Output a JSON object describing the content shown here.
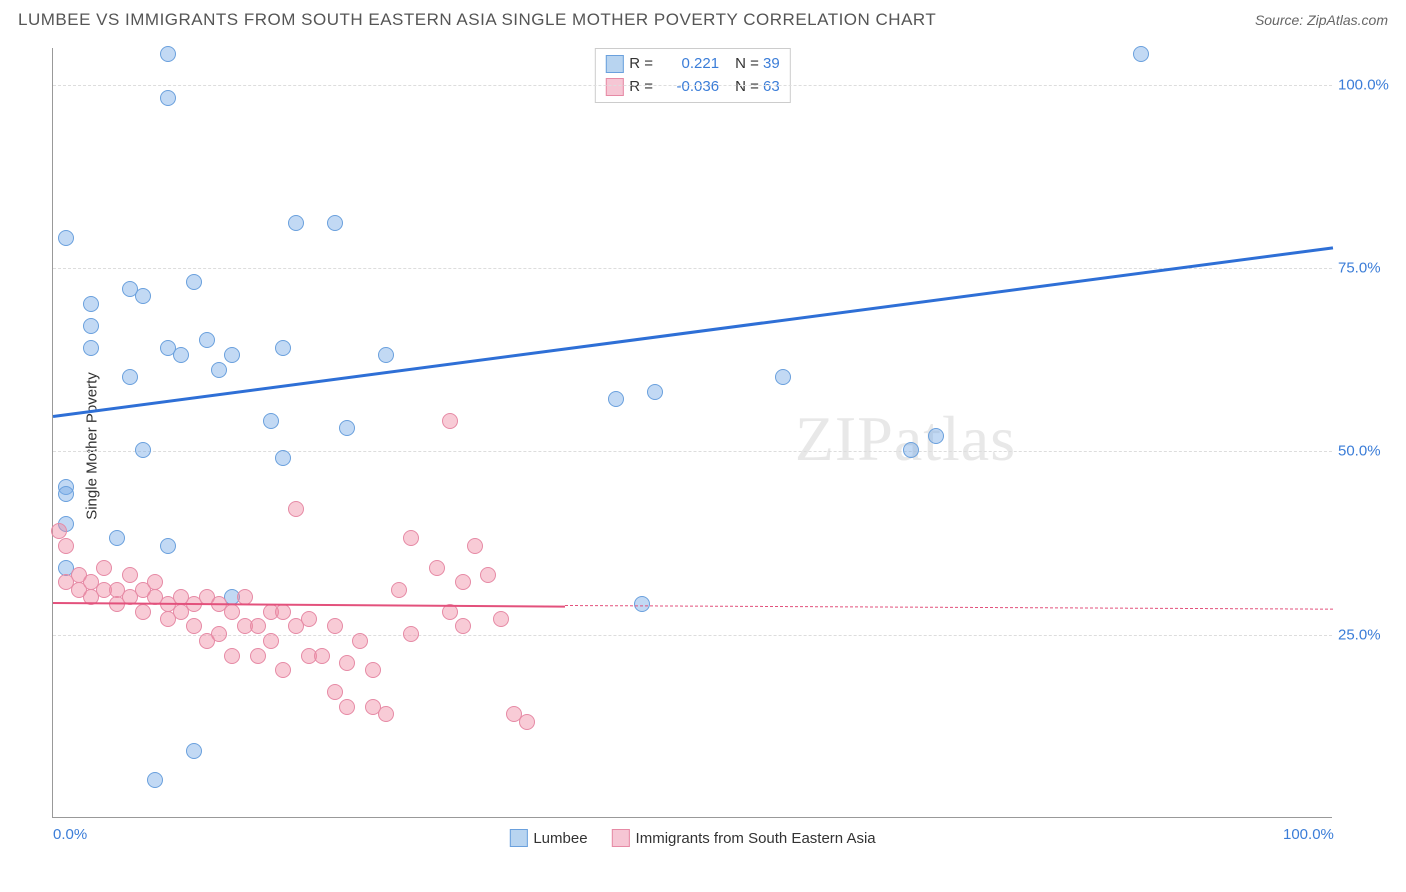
{
  "title": "LUMBEE VS IMMIGRANTS FROM SOUTH EASTERN ASIA SINGLE MOTHER POVERTY CORRELATION CHART",
  "source": "Source: ZipAtlas.com",
  "y_axis_label": "Single Mother Poverty",
  "watermark": "ZIPatlas",
  "chart": {
    "type": "scatter",
    "xlim": [
      0,
      100
    ],
    "ylim": [
      0,
      105
    ],
    "y_ticks": [
      25,
      50,
      75,
      100
    ],
    "y_tick_labels": [
      "25.0%",
      "50.0%",
      "75.0%",
      "100.0%"
    ],
    "x_ticks": [
      0,
      100
    ],
    "x_tick_labels": [
      "0.0%",
      "100.0%"
    ],
    "grid_color": "#dddddd",
    "background_color": "#ffffff"
  },
  "series": [
    {
      "name": "Lumbee",
      "color_fill": "rgba(120,170,230,0.45)",
      "color_stroke": "#6aa0dd",
      "swatch_fill": "#b8d4f0",
      "swatch_stroke": "#6aa0dd",
      "r_value": "0.221",
      "n_value": "39",
      "marker_radius": 8,
      "trend": {
        "x1": 0,
        "y1": 55,
        "x2": 100,
        "y2": 78,
        "color": "#2e6fd6",
        "width": 2.5
      },
      "points": [
        [
          1,
          79
        ],
        [
          1,
          45
        ],
        [
          1,
          44
        ],
        [
          1,
          40
        ],
        [
          9,
          104
        ],
        [
          9,
          98
        ],
        [
          3,
          67
        ],
        [
          3,
          64
        ],
        [
          6,
          72
        ],
        [
          7,
          71
        ],
        [
          9,
          64
        ],
        [
          11,
          73
        ],
        [
          5,
          38
        ],
        [
          7,
          50
        ],
        [
          10,
          63
        ],
        [
          12,
          65
        ],
        [
          13,
          61
        ],
        [
          14,
          63
        ],
        [
          17,
          54
        ],
        [
          18,
          64
        ],
        [
          19,
          81
        ],
        [
          22,
          81
        ],
        [
          18,
          49
        ],
        [
          14,
          30
        ],
        [
          23,
          53
        ],
        [
          26,
          63
        ],
        [
          11,
          9
        ],
        [
          8,
          5
        ],
        [
          44,
          57
        ],
        [
          47,
          58
        ],
        [
          57,
          60
        ],
        [
          67,
          50
        ],
        [
          69,
          52
        ],
        [
          85,
          104
        ],
        [
          46,
          29
        ],
        [
          1,
          34
        ],
        [
          3,
          70
        ],
        [
          6,
          60
        ],
        [
          9,
          37
        ]
      ]
    },
    {
      "name": "Immigrants from South Eastern Asia",
      "color_fill": "rgba(240,140,165,0.45)",
      "color_stroke": "#e68aa5",
      "swatch_fill": "#f6c6d4",
      "swatch_stroke": "#e68aa5",
      "r_value": "-0.036",
      "n_value": "63",
      "marker_radius": 8,
      "trend": {
        "x1": 0,
        "y1": 29.5,
        "x2": 40,
        "y2": 29,
        "dash_to_x": 100,
        "dash_to_y": 28.5,
        "color": "#e3517c",
        "width": 2
      },
      "points": [
        [
          0.5,
          39
        ],
        [
          1,
          37
        ],
        [
          1,
          32
        ],
        [
          2,
          33
        ],
        [
          2,
          31
        ],
        [
          3,
          32
        ],
        [
          3,
          30
        ],
        [
          4,
          34
        ],
        [
          4,
          31
        ],
        [
          5,
          31
        ],
        [
          5,
          29
        ],
        [
          6,
          33
        ],
        [
          6,
          30
        ],
        [
          7,
          31
        ],
        [
          7,
          28
        ],
        [
          8,
          30
        ],
        [
          8,
          32
        ],
        [
          9,
          29
        ],
        [
          9,
          27
        ],
        [
          10,
          30
        ],
        [
          10,
          28
        ],
        [
          11,
          29
        ],
        [
          11,
          26
        ],
        [
          12,
          30
        ],
        [
          12,
          24
        ],
        [
          13,
          29
        ],
        [
          13,
          25
        ],
        [
          14,
          28
        ],
        [
          14,
          22
        ],
        [
          15,
          30
        ],
        [
          15,
          26
        ],
        [
          16,
          26
        ],
        [
          16,
          22
        ],
        [
          17,
          28
        ],
        [
          17,
          24
        ],
        [
          18,
          28
        ],
        [
          18,
          20
        ],
        [
          19,
          42
        ],
        [
          19,
          26
        ],
        [
          20,
          27
        ],
        [
          20,
          22
        ],
        [
          21,
          22
        ],
        [
          22,
          17
        ],
        [
          22,
          26
        ],
        [
          23,
          21
        ],
        [
          23,
          15
        ],
        [
          24,
          24
        ],
        [
          25,
          20
        ],
        [
          25,
          15
        ],
        [
          26,
          14
        ],
        [
          27,
          31
        ],
        [
          28,
          25
        ],
        [
          28,
          38
        ],
        [
          30,
          34
        ],
        [
          31,
          28
        ],
        [
          31,
          54
        ],
        [
          32,
          32
        ],
        [
          32,
          26
        ],
        [
          33,
          37
        ],
        [
          34,
          33
        ],
        [
          35,
          27
        ],
        [
          36,
          14
        ],
        [
          37,
          13
        ]
      ]
    }
  ],
  "legend_bottom": [
    {
      "label": "Lumbee",
      "swatch_fill": "#b8d4f0",
      "swatch_stroke": "#6aa0dd"
    },
    {
      "label": "Immigrants from South Eastern Asia",
      "swatch_fill": "#f6c6d4",
      "swatch_stroke": "#e68aa5"
    }
  ]
}
